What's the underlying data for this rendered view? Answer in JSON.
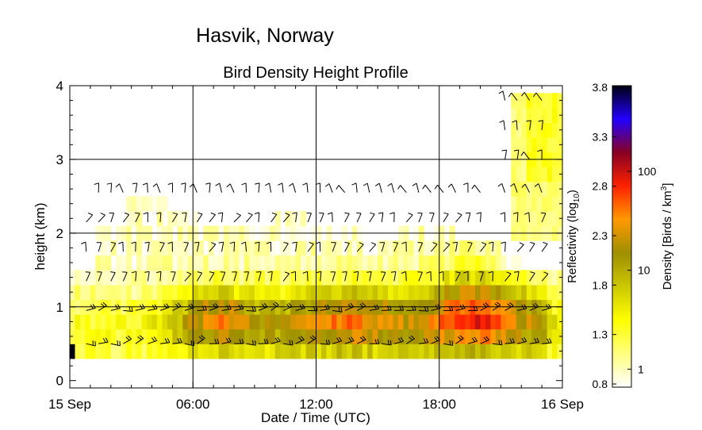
{
  "chart_data": {
    "type": "heatmap",
    "title": "Hasvik, Norway",
    "subtitle": "Bird Density Height Profile",
    "xlabel": "Date / Time (UTC)",
    "ylabel": "height (km)",
    "x_range_hours": [
      0,
      24
    ],
    "x_ticks": [
      {
        "hour": 0,
        "label": "15 Sep"
      },
      {
        "hour": 6,
        "label": "06:00"
      },
      {
        "hour": 12,
        "label": "12:00"
      },
      {
        "hour": 18,
        "label": "18:00"
      },
      {
        "hour": 24,
        "label": "16 Sep"
      }
    ],
    "ylim": [
      -0.1,
      4.0
    ],
    "y_ticks": [
      "0",
      "1",
      "2",
      "3",
      "4"
    ],
    "grid": true,
    "colorbar": {
      "label_left": "Reflectivity (log10)",
      "label_right": "Density [Birds / km3]",
      "reflectivity_ticks": [
        "0.8",
        "1.3",
        "1.8",
        "2.3",
        "2.8",
        "3.3",
        "3.8"
      ],
      "density_ticks": [
        "1",
        "10",
        "100"
      ],
      "range_log10": [
        0.8,
        3.8
      ],
      "colors": [
        "#ffffff",
        "#ffff80",
        "#ffff00",
        "#ccc800",
        "#9e8f00",
        "#ff9900",
        "#ff2200",
        "#880022",
        "#2200ff",
        "#000010"
      ]
    },
    "height_bins_km": [
      0.4,
      0.6,
      0.8,
      1.0,
      1.2,
      1.4,
      1.6,
      1.8,
      2.0,
      2.2,
      2.4,
      2.6,
      2.8,
      3.0,
      3.2,
      3.4,
      3.6,
      3.8
    ],
    "wind_barb_heights_km": [
      0.5,
      0.95,
      1.35,
      1.75,
      2.15,
      2.55,
      3.0,
      3.4,
      3.8
    ]
  }
}
